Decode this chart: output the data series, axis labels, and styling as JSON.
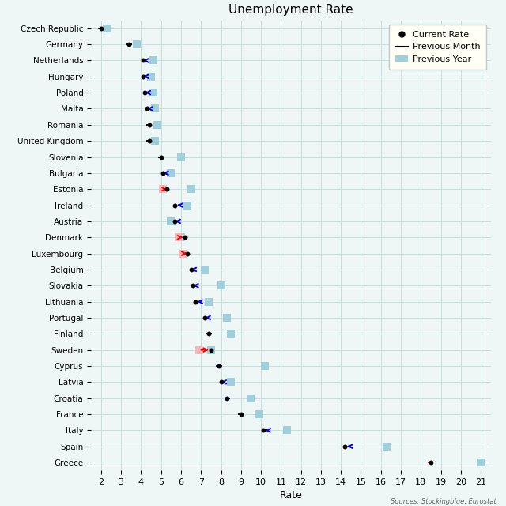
{
  "title": "Unemployment Rate",
  "xlabel": "Rate",
  "source_text": "Sources: Stockingblue, Eurostat",
  "xlim": [
    1.5,
    21.5
  ],
  "xticks": [
    2,
    3,
    4,
    5,
    6,
    7,
    8,
    9,
    10,
    11,
    12,
    13,
    14,
    15,
    16,
    17,
    18,
    19,
    20,
    21
  ],
  "countries": [
    "Czech Republic",
    "Germany",
    "Netherlands",
    "Hungary",
    "Poland",
    "Malta",
    "Romania",
    "United Kingdom",
    "Slovenia",
    "Bulgaria",
    "Estonia",
    "Ireland",
    "Austria",
    "Denmark",
    "Luxembourg",
    "Belgium",
    "Slovakia",
    "Lithuania",
    "Portugal",
    "Finland",
    "Sweden",
    "Cyprus",
    "Latvia",
    "Croatia",
    "France",
    "Italy",
    "Spain",
    "Greece"
  ],
  "current_rate": [
    2.0,
    3.4,
    4.1,
    4.1,
    4.2,
    4.3,
    4.4,
    4.4,
    5.0,
    5.1,
    5.3,
    5.7,
    5.7,
    6.2,
    6.3,
    6.5,
    6.6,
    6.7,
    7.2,
    7.4,
    7.5,
    7.9,
    8.0,
    8.3,
    9.0,
    10.1,
    14.2,
    18.5
  ],
  "prev_month": [
    2.0,
    3.4,
    4.3,
    4.3,
    4.3,
    4.5,
    4.4,
    4.4,
    5.0,
    5.3,
    5.1,
    6.0,
    5.9,
    5.9,
    6.1,
    6.7,
    6.8,
    7.1,
    7.4,
    7.4,
    6.9,
    7.9,
    8.1,
    8.3,
    9.0,
    10.4,
    14.5,
    18.5
  ],
  "prev_year": [
    2.3,
    3.8,
    4.6,
    4.5,
    4.6,
    4.7,
    4.8,
    4.7,
    6.0,
    5.5,
    6.5,
    6.3,
    5.5,
    6.0,
    6.1,
    7.2,
    8.0,
    7.4,
    8.3,
    8.5,
    7.5,
    10.2,
    8.5,
    9.5,
    9.9,
    11.3,
    16.3,
    21.0
  ],
  "arrow_colors": [
    "black",
    "black",
    "blue",
    "blue",
    "blue",
    "blue",
    "black",
    "black",
    "black",
    "blue",
    "red",
    "blue",
    "blue",
    "red",
    "red",
    "blue",
    "blue",
    "blue",
    "blue",
    "black",
    "red",
    "blue",
    "blue",
    "blue",
    "black",
    "blue",
    "blue",
    "red"
  ],
  "background_color": "#eef6f6",
  "legend_bg": "#fffff5",
  "grid_color": "#c8dede",
  "prev_year_color": "#9ecfda",
  "current_dot_color": "black",
  "prev_month_pink_color": "#f5b8b8"
}
